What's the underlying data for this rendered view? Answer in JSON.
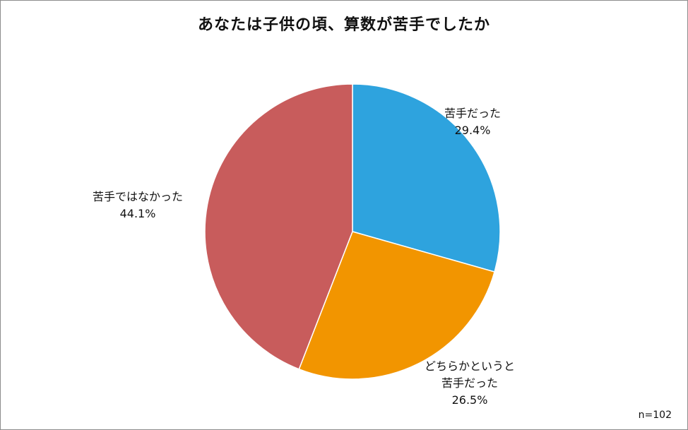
{
  "chart_data": {
    "type": "pie",
    "title": "あなたは子供の頃、算数が苦手でしたか",
    "slices": [
      {
        "label": "苦手だった",
        "value": 29.4,
        "value_label": "29.4%",
        "color": "#2ea3de"
      },
      {
        "label": "どちらかというと苦手だった",
        "label_lines": [
          "どちらかというと",
          "苦手だった"
        ],
        "value": 26.5,
        "value_label": "26.5%",
        "color": "#f29500"
      },
      {
        "label": "苦手ではなかった",
        "value": 44.1,
        "value_label": "44.1%",
        "color": "#c85c5c"
      }
    ],
    "start_angle_deg": 0,
    "direction": "clockwise",
    "note": "n=102",
    "legend": "none"
  }
}
